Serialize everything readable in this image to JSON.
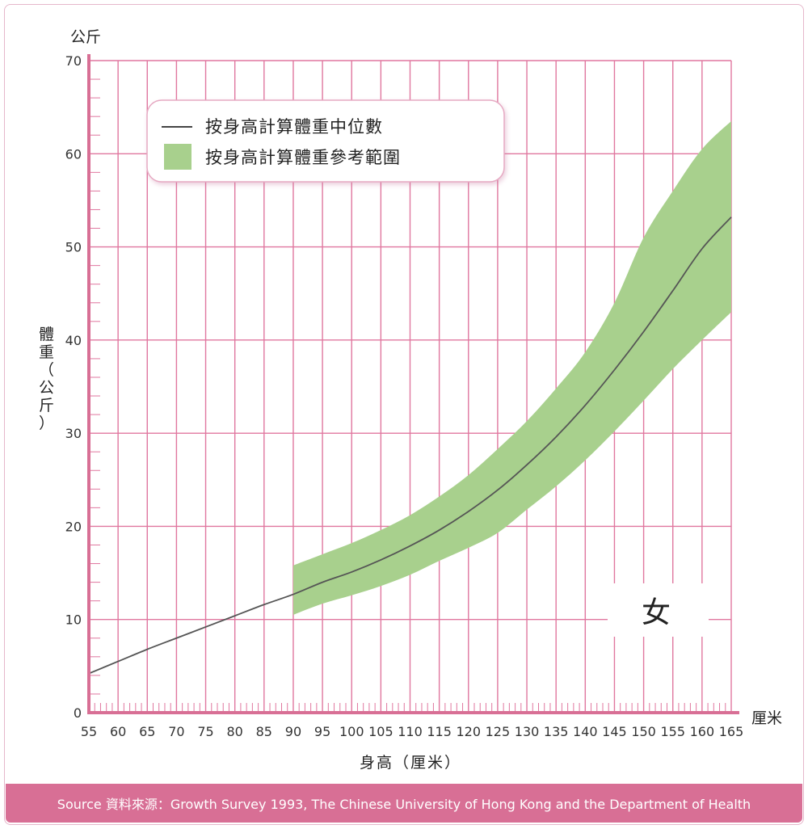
{
  "chart_data": {
    "type": "line",
    "y_unit_label": "公斤",
    "ylabel": "體重（公斤）",
    "x_unit_label": "厘米",
    "xlabel": "身高（厘米）",
    "badge": "女",
    "x_ticks": [
      "55",
      "60",
      "65",
      "70",
      "75",
      "80",
      "85",
      "90",
      "95",
      "100",
      "105",
      "110",
      "115",
      "120",
      "125",
      "130",
      "135",
      "140",
      "145",
      "150",
      "155",
      "160",
      "165"
    ],
    "y_ticks": [
      "0",
      "10",
      "20",
      "30",
      "40",
      "50",
      "60",
      "70"
    ],
    "xlim": [
      55,
      165
    ],
    "ylim": [
      0,
      70
    ],
    "grid": true,
    "legend": {
      "position": "top-left",
      "median_label": "按身高計算體重中位數",
      "range_label": "按身高計算體重參考範圍"
    },
    "series": [
      {
        "name": "按身高計算體重中位數",
        "x": [
          55,
          60,
          65,
          70,
          75,
          80,
          85,
          90,
          95,
          100,
          105,
          110,
          115,
          120,
          125,
          130,
          135,
          140,
          145,
          150,
          155,
          160,
          165
        ],
        "y": [
          4.2,
          5.5,
          6.8,
          8.0,
          9.2,
          10.4,
          11.6,
          12.7,
          14.0,
          15.1,
          16.4,
          17.9,
          19.6,
          21.6,
          23.9,
          26.6,
          29.6,
          33.0,
          36.8,
          40.9,
          45.3,
          49.8,
          53.2
        ],
        "color": "#555555"
      },
      {
        "name": "按身高計算體重參考範圍",
        "x": [
          90,
          95,
          100,
          105,
          110,
          115,
          120,
          125,
          130,
          135,
          140,
          145,
          150,
          155,
          160,
          165
        ],
        "lower": [
          10.5,
          11.7,
          12.6,
          13.6,
          14.8,
          16.3,
          17.7,
          19.3,
          21.8,
          24.3,
          27.1,
          30.2,
          33.5,
          36.9,
          40.0,
          43.0
        ],
        "upper": [
          15.8,
          17.0,
          18.2,
          19.6,
          21.2,
          23.2,
          25.5,
          28.3,
          31.3,
          34.8,
          38.7,
          44.0,
          51.0,
          56.0,
          60.5,
          63.5
        ],
        "color": "#a8d08d"
      }
    ],
    "colors": {
      "grid": "#e0779f",
      "axis": "#d86f95",
      "median": "#555555",
      "band": "#a8d08d"
    }
  },
  "footer": {
    "source": "Source 資料來源：Growth Survey 1993, The Chinese University of Hong Kong and the Department of Health"
  }
}
